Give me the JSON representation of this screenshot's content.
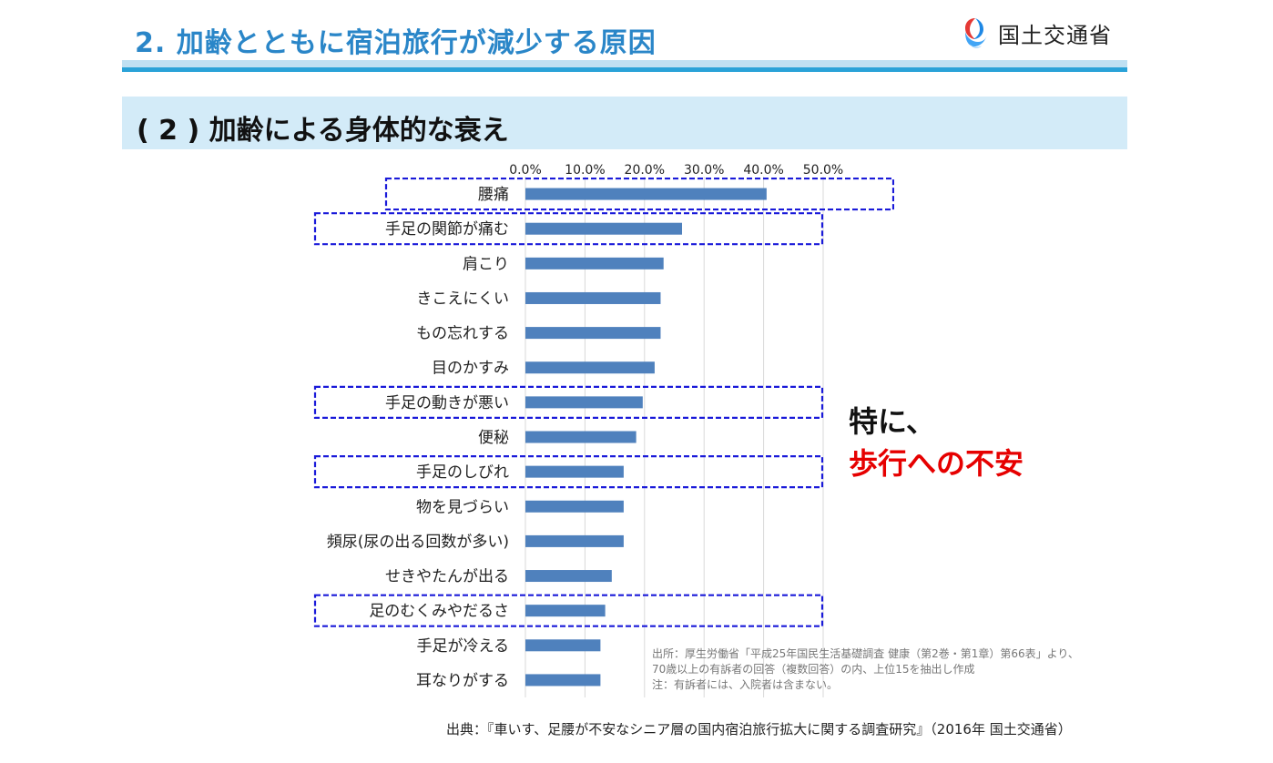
{
  "header": {
    "title": "2. 加齢とともに宿泊旅行が減少する原因",
    "logo_text": "国土交通省",
    "logo_icon": "mlit-logo-icon"
  },
  "section": {
    "subtitle": "( 2 ) 加齢による身体的な衰え"
  },
  "chart_data": {
    "type": "bar",
    "orientation": "horizontal",
    "categories": [
      "腰痛",
      "手足の関節が痛む",
      "肩こり",
      "きこえにくい",
      "もの忘れする",
      "目のかすみ",
      "手足の動きが悪い",
      "便秘",
      "手足のしびれ",
      "物を見づらい",
      "頻尿(尿の出る回数が多い)",
      "せきやたんが出る",
      "足のむくみやだるさ",
      "手足が冷える",
      "耳なりがする"
    ],
    "values": [
      40.5,
      26.3,
      23.2,
      22.7,
      22.7,
      21.7,
      19.7,
      18.6,
      16.5,
      16.5,
      16.5,
      14.5,
      13.4,
      12.6,
      12.6
    ],
    "highlighted": [
      "腰痛",
      "手足の関節が痛む",
      "手足の動きが悪い",
      "手足のしびれ",
      "足のむくみやだるさ"
    ],
    "tick_labels": [
      "0.0%",
      "10.0%",
      "20.0%",
      "30.0%",
      "40.0%",
      "50.0%"
    ],
    "xlim": [
      0,
      50
    ],
    "grid": true,
    "bar_color": "#4f81bd",
    "highlight_color": "#1a1ad9"
  },
  "callout": {
    "line1": "特に、",
    "line2": "歩行への不安",
    "line2_color": "#e60000"
  },
  "note": {
    "line1": "出所：厚生労働省「平成25年国民生活基礎調査 健康（第2巻・第1章）第66表」より、",
    "line2": "70歳以上の有訴者の回答（複数回答）の内、上位15を抽出し作成",
    "line3": "注：有訴者には、入院者は含まない。"
  },
  "footer": {
    "source": "出典：『車いす、足腰が不安なシニア層の国内宿泊旅行拡大に関する調査研究』（2016年 国土交通省）"
  }
}
